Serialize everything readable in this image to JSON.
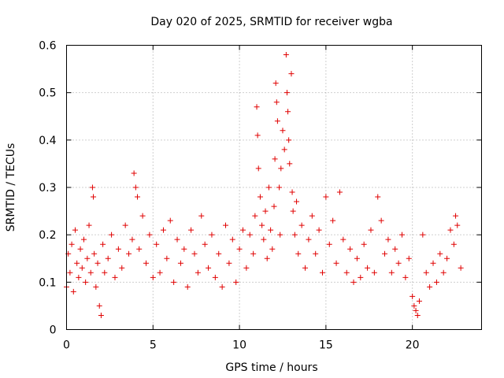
{
  "chart_data": {
    "type": "scatter",
    "title": "Day 020 of 2025, SRMTID for receiver wgba",
    "xlabel": "GPS time / hours",
    "ylabel": "SRMTID / TECUs",
    "xlim": [
      0,
      24
    ],
    "ylim": [
      0,
      0.6
    ],
    "xticks": [
      0,
      5,
      10,
      15,
      20
    ],
    "xtick_labels": [
      "0",
      "5",
      "10",
      "15",
      "20"
    ],
    "yticks": [
      0,
      0.1,
      0.2,
      0.3,
      0.4,
      0.5,
      0.6
    ],
    "ytick_labels": [
      "0",
      "0.1",
      "0.2",
      "0.3",
      "0.4",
      "0.5",
      "0.6"
    ],
    "grid": true,
    "marker": "+",
    "color": "#e00000",
    "series": [
      {
        "name": "SRMTID",
        "points": [
          [
            0.0,
            0.09
          ],
          [
            0.1,
            0.16
          ],
          [
            0.2,
            0.12
          ],
          [
            0.3,
            0.18
          ],
          [
            0.4,
            0.08
          ],
          [
            0.5,
            0.21
          ],
          [
            0.6,
            0.14
          ],
          [
            0.7,
            0.11
          ],
          [
            0.8,
            0.17
          ],
          [
            0.9,
            0.13
          ],
          [
            1.0,
            0.19
          ],
          [
            1.1,
            0.1
          ],
          [
            1.2,
            0.15
          ],
          [
            1.3,
            0.22
          ],
          [
            1.4,
            0.12
          ],
          [
            1.5,
            0.3
          ],
          [
            1.55,
            0.28
          ],
          [
            1.6,
            0.16
          ],
          [
            1.7,
            0.09
          ],
          [
            1.8,
            0.14
          ],
          [
            1.9,
            0.05
          ],
          [
            2.0,
            0.03
          ],
          [
            2.1,
            0.18
          ],
          [
            2.2,
            0.12
          ],
          [
            2.4,
            0.15
          ],
          [
            2.6,
            0.2
          ],
          [
            2.8,
            0.11
          ],
          [
            3.0,
            0.17
          ],
          [
            3.2,
            0.13
          ],
          [
            3.4,
            0.22
          ],
          [
            3.6,
            0.16
          ],
          [
            3.8,
            0.19
          ],
          [
            3.9,
            0.33
          ],
          [
            4.0,
            0.3
          ],
          [
            4.1,
            0.28
          ],
          [
            4.2,
            0.17
          ],
          [
            4.4,
            0.24
          ],
          [
            4.6,
            0.14
          ],
          [
            4.8,
            0.2
          ],
          [
            5.0,
            0.11
          ],
          [
            5.2,
            0.18
          ],
          [
            5.4,
            0.12
          ],
          [
            5.6,
            0.21
          ],
          [
            5.8,
            0.15
          ],
          [
            6.0,
            0.23
          ],
          [
            6.2,
            0.1
          ],
          [
            6.4,
            0.19
          ],
          [
            6.6,
            0.14
          ],
          [
            6.8,
            0.17
          ],
          [
            7.0,
            0.09
          ],
          [
            7.2,
            0.21
          ],
          [
            7.4,
            0.16
          ],
          [
            7.6,
            0.12
          ],
          [
            7.8,
            0.24
          ],
          [
            8.0,
            0.18
          ],
          [
            8.2,
            0.13
          ],
          [
            8.4,
            0.2
          ],
          [
            8.6,
            0.11
          ],
          [
            8.8,
            0.16
          ],
          [
            9.0,
            0.09
          ],
          [
            9.2,
            0.22
          ],
          [
            9.4,
            0.14
          ],
          [
            9.6,
            0.19
          ],
          [
            9.8,
            0.1
          ],
          [
            10.0,
            0.17
          ],
          [
            10.2,
            0.21
          ],
          [
            10.4,
            0.13
          ],
          [
            10.6,
            0.2
          ],
          [
            10.8,
            0.16
          ],
          [
            10.9,
            0.24
          ],
          [
            11.0,
            0.47
          ],
          [
            11.05,
            0.41
          ],
          [
            11.1,
            0.34
          ],
          [
            11.2,
            0.28
          ],
          [
            11.3,
            0.22
          ],
          [
            11.4,
            0.19
          ],
          [
            11.5,
            0.25
          ],
          [
            11.6,
            0.15
          ],
          [
            11.7,
            0.3
          ],
          [
            11.8,
            0.21
          ],
          [
            11.9,
            0.17
          ],
          [
            12.0,
            0.26
          ],
          [
            12.05,
            0.36
          ],
          [
            12.1,
            0.52
          ],
          [
            12.15,
            0.48
          ],
          [
            12.2,
            0.44
          ],
          [
            12.3,
            0.3
          ],
          [
            12.35,
            0.2
          ],
          [
            12.4,
            0.34
          ],
          [
            12.5,
            0.42
          ],
          [
            12.6,
            0.38
          ],
          [
            12.7,
            0.58
          ],
          [
            12.75,
            0.5
          ],
          [
            12.8,
            0.46
          ],
          [
            12.85,
            0.4
          ],
          [
            12.9,
            0.35
          ],
          [
            13.0,
            0.54
          ],
          [
            13.05,
            0.29
          ],
          [
            13.1,
            0.25
          ],
          [
            13.2,
            0.2
          ],
          [
            13.3,
            0.27
          ],
          [
            13.4,
            0.16
          ],
          [
            13.6,
            0.22
          ],
          [
            13.8,
            0.13
          ],
          [
            14.0,
            0.19
          ],
          [
            14.2,
            0.24
          ],
          [
            14.4,
            0.16
          ],
          [
            14.6,
            0.21
          ],
          [
            14.8,
            0.12
          ],
          [
            15.0,
            0.28
          ],
          [
            15.2,
            0.18
          ],
          [
            15.4,
            0.23
          ],
          [
            15.6,
            0.14
          ],
          [
            15.8,
            0.29
          ],
          [
            16.0,
            0.19
          ],
          [
            16.2,
            0.12
          ],
          [
            16.4,
            0.17
          ],
          [
            16.6,
            0.1
          ],
          [
            16.8,
            0.15
          ],
          [
            17.0,
            0.11
          ],
          [
            17.2,
            0.18
          ],
          [
            17.4,
            0.13
          ],
          [
            17.6,
            0.21
          ],
          [
            17.8,
            0.12
          ],
          [
            18.0,
            0.28
          ],
          [
            18.2,
            0.23
          ],
          [
            18.4,
            0.16
          ],
          [
            18.6,
            0.19
          ],
          [
            18.8,
            0.12
          ],
          [
            19.0,
            0.17
          ],
          [
            19.2,
            0.14
          ],
          [
            19.4,
            0.2
          ],
          [
            19.6,
            0.11
          ],
          [
            19.8,
            0.15
          ],
          [
            20.0,
            0.07
          ],
          [
            20.1,
            0.05
          ],
          [
            20.2,
            0.04
          ],
          [
            20.3,
            0.03
          ],
          [
            20.4,
            0.06
          ],
          [
            20.6,
            0.2
          ],
          [
            20.8,
            0.12
          ],
          [
            21.0,
            0.09
          ],
          [
            21.2,
            0.14
          ],
          [
            21.4,
            0.1
          ],
          [
            21.6,
            0.16
          ],
          [
            21.8,
            0.12
          ],
          [
            22.0,
            0.15
          ],
          [
            22.2,
            0.21
          ],
          [
            22.4,
            0.18
          ],
          [
            22.5,
            0.24
          ],
          [
            22.6,
            0.22
          ],
          [
            22.8,
            0.13
          ]
        ]
      }
    ]
  }
}
